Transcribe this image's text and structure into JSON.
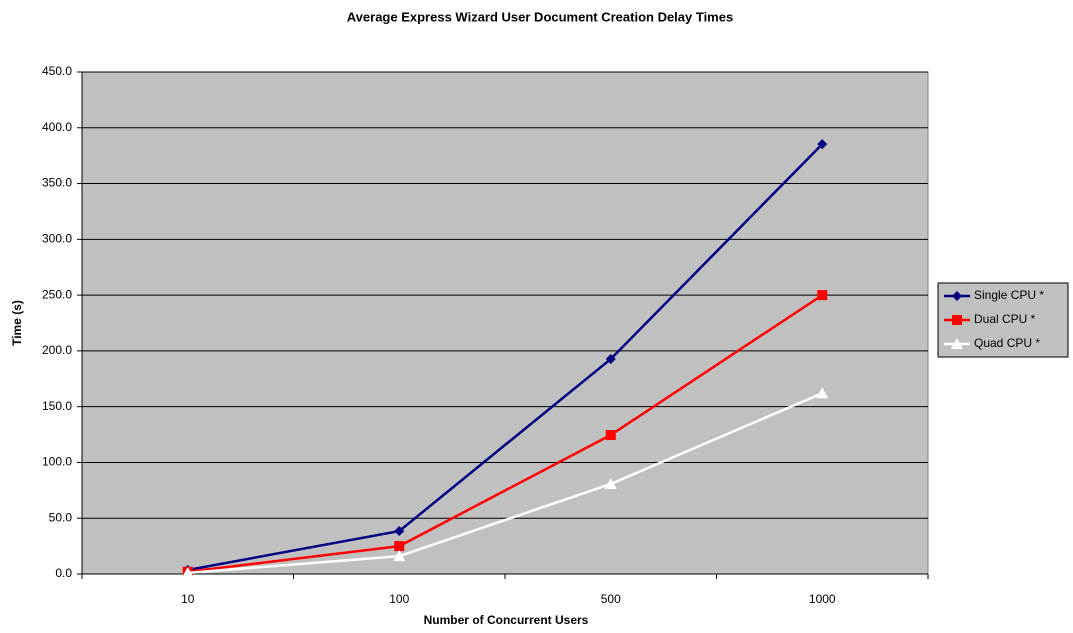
{
  "chart_data": {
    "type": "line",
    "title": "Average Express Wizard User Document Creation Delay Times",
    "x_label": "Number of Concurrent Users",
    "y_label": "Time (s)",
    "categories": [
      "10",
      "100",
      "500",
      "1000"
    ],
    "series": [
      {
        "name": "Single CPU *",
        "color": "#000080",
        "marker": "diamond",
        "values": [
          3.6,
          38.5,
          192.7,
          385.4
        ]
      },
      {
        "name": "Dual CPU *",
        "color": "#ff0000",
        "marker": "square",
        "values": [
          2,
          25,
          124.6,
          250
        ]
      },
      {
        "name": "Quad CPU *",
        "color": "#ffffff",
        "marker": "triangle",
        "values": [
          1,
          16,
          80.7,
          162
        ]
      }
    ],
    "ylim": [
      0,
      450
    ],
    "yticks": [
      {
        "value": 0,
        "label": "0.0"
      },
      {
        "value": 50,
        "label": "50.0"
      },
      {
        "value": 100,
        "label": "100.0"
      },
      {
        "value": 150,
        "label": "150.0"
      },
      {
        "value": 200,
        "label": "200.0"
      },
      {
        "value": 250,
        "label": "250.0"
      },
      {
        "value": 300,
        "label": "300.0"
      },
      {
        "value": 350,
        "label": "350.0"
      },
      {
        "value": 400,
        "label": "400.0"
      },
      {
        "value": 450,
        "label": "450.0"
      }
    ],
    "grid": true,
    "plot_background": "#c0c0c0",
    "legend": "right"
  }
}
